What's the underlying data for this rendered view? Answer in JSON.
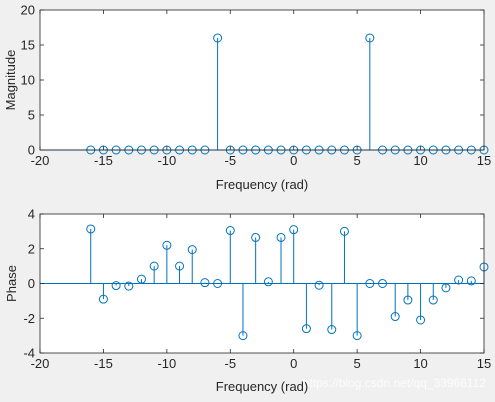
{
  "chart_data": [
    {
      "type": "stem",
      "xlabel": "Frequency (rad)",
      "ylabel": "Magnitude",
      "xlim": [
        -20,
        15
      ],
      "ylim": [
        0,
        20
      ],
      "xticks": [
        -20,
        -15,
        -10,
        -5,
        0,
        5,
        10,
        15
      ],
      "yticks": [
        0,
        5,
        10,
        15,
        20
      ],
      "grid": false,
      "x": [
        -16,
        -15,
        -14,
        -13,
        -12,
        -11,
        -10,
        -9,
        -8,
        -7,
        -6,
        -5,
        -4,
        -3,
        -2,
        -1,
        0,
        1,
        2,
        3,
        4,
        5,
        6,
        7,
        8,
        9,
        10,
        11,
        12,
        13,
        14,
        15
      ],
      "y": [
        0,
        0,
        0,
        0,
        0,
        0,
        0,
        0,
        0,
        0,
        16,
        0,
        0,
        0,
        0,
        0,
        0,
        0,
        0,
        0,
        0,
        0,
        16,
        0,
        0,
        0,
        0,
        0,
        0,
        0,
        0,
        0
      ]
    },
    {
      "type": "stem",
      "xlabel": "Frequency (rad)",
      "ylabel": "Phase",
      "xlim": [
        -20,
        15
      ],
      "ylim": [
        -4,
        4
      ],
      "xticks": [
        -20,
        -15,
        -10,
        -5,
        0,
        5,
        10,
        15
      ],
      "yticks": [
        -4,
        -2,
        0,
        2,
        4
      ],
      "grid": false,
      "x": [
        -16,
        -15,
        -14,
        -13,
        -12,
        -11,
        -10,
        -9,
        -8,
        -7,
        -6,
        -5,
        -4,
        -3,
        -2,
        -1,
        0,
        1,
        2,
        3,
        4,
        5,
        6,
        7,
        8,
        9,
        10,
        11,
        12,
        13,
        14,
        15
      ],
      "y": [
        3.14,
        -0.9,
        -0.12,
        -0.15,
        0.25,
        1.0,
        2.2,
        1.0,
        1.95,
        0.05,
        0.0,
        3.05,
        -3.0,
        2.65,
        0.1,
        2.65,
        3.1,
        -2.6,
        -0.1,
        -2.65,
        3.0,
        -3.0,
        0.0,
        0.0,
        -1.9,
        -0.95,
        -2.1,
        -0.95,
        -0.25,
        0.2,
        0.15,
        0.95
      ]
    }
  ],
  "watermark": "https://blog.csdn.net/qq_33966112",
  "colors": {
    "stem": "#0072BD",
    "axes": "#262626",
    "plot_bg": "#ffffff",
    "figure_bg": "#f0f0f0"
  }
}
